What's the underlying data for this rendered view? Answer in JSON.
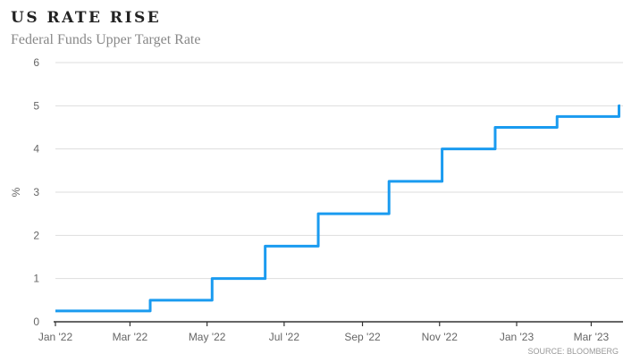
{
  "chart_data": {
    "type": "line",
    "title": "US RATE RISE",
    "subtitle": "Federal Funds Upper Target Rate",
    "ylabel": "%",
    "xlabel": "",
    "source": "SOURCE: BLOOMBERG",
    "ylim": [
      0,
      6
    ],
    "yticks": [
      0,
      1,
      2,
      3,
      4,
      5,
      6
    ],
    "x_unit": "days since 1 Jan 2022",
    "xlim": [
      0,
      448
    ],
    "xticks": [
      {
        "label": "Jan '22",
        "day": 0
      },
      {
        "label": "Mar '22",
        "day": 59
      },
      {
        "label": "May '22",
        "day": 120
      },
      {
        "label": "Jul '22",
        "day": 181
      },
      {
        "label": "Sep '22",
        "day": 243
      },
      {
        "label": "Nov '22",
        "day": 304
      },
      {
        "label": "Jan '23",
        "day": 365
      },
      {
        "label": "Mar '23",
        "day": 424
      }
    ],
    "grid": true,
    "step": true,
    "color": "#1a9bf0",
    "series": [
      {
        "name": "Federal Funds Upper Target Rate",
        "x": [
          0,
          75,
          124,
          166,
          208,
          264,
          306,
          348,
          397,
          446,
          447
        ],
        "y": [
          0.25,
          0.5,
          1.0,
          1.75,
          2.5,
          3.25,
          4.0,
          4.5,
          4.75,
          5.0,
          5.0
        ]
      }
    ]
  }
}
